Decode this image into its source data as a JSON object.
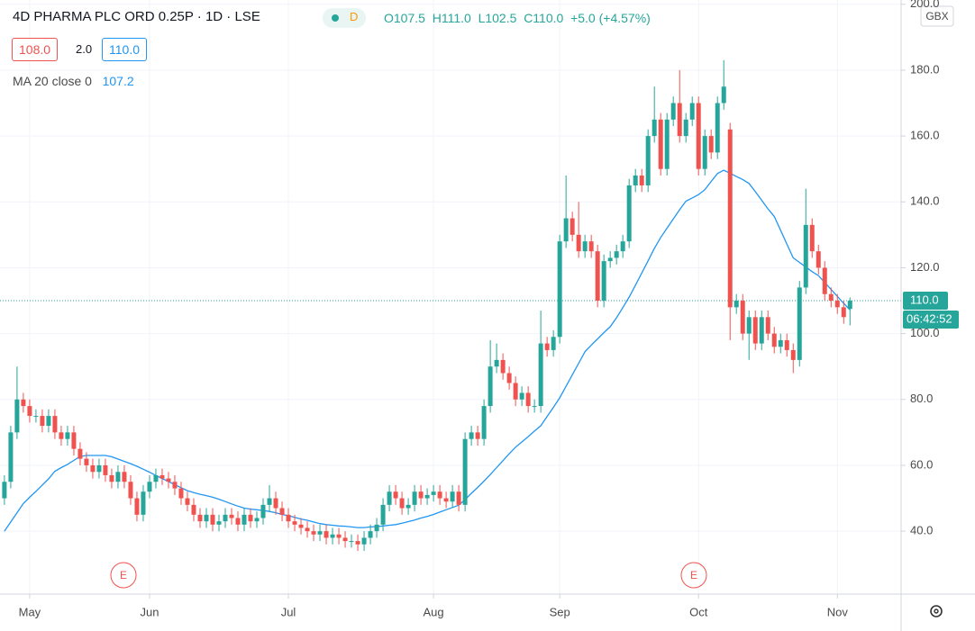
{
  "header": {
    "symbol": "4D PHARMA PLC ORD 0.25P · 1D · LSE",
    "badge": "D",
    "ohlc": [
      "O107.5",
      "H111.0",
      "L102.5",
      "C110.0",
      "+5.0 (+4.57%)"
    ],
    "bid": "108.0",
    "spread": "2.0",
    "ask": "110.0"
  },
  "overlay": {
    "currency": "GBX",
    "last_price": "110.0",
    "countdown": "06:42:52",
    "earnings": [
      "E",
      "E"
    ]
  },
  "chart_data": {
    "type": "candlestick",
    "up_color": "#26a69a",
    "down_color": "#ef5350",
    "grid": true,
    "xlim": [
      -0.7,
      142.1
    ],
    "xticks": [
      {
        "value": 4,
        "label": "May"
      },
      {
        "value": 23,
        "label": "Jun"
      },
      {
        "value": 45,
        "label": "Jul"
      },
      {
        "value": 68,
        "label": "Aug"
      },
      {
        "value": 88,
        "label": "Sep"
      },
      {
        "value": 110,
        "label": "Oct"
      },
      {
        "value": 132,
        "label": "Nov"
      }
    ],
    "ylim": [
      20.9,
      201.3
    ],
    "yticks": [
      {
        "value": 40,
        "label": "40.0"
      },
      {
        "value": 60,
        "label": "60.0"
      },
      {
        "value": 80,
        "label": "80.0"
      },
      {
        "value": 100,
        "label": "100.0"
      },
      {
        "value": 120,
        "label": "120.0"
      },
      {
        "value": 140,
        "label": "140.0"
      },
      {
        "value": 160,
        "label": "160.0"
      },
      {
        "value": 180,
        "label": "180.0"
      },
      {
        "value": 200,
        "label": "200.0"
      }
    ],
    "open": [
      50,
      55,
      70,
      80,
      78,
      75,
      75,
      72,
      75,
      70,
      68,
      70,
      65,
      62,
      60,
      58,
      60,
      57,
      55,
      58,
      55,
      50,
      45,
      52,
      55,
      57,
      56,
      55,
      53,
      50,
      48,
      45,
      43,
      45,
      42,
      43,
      45,
      44,
      42,
      45,
      43,
      44,
      48,
      50,
      47,
      45,
      43,
      42,
      41,
      40,
      39,
      40,
      38,
      39,
      38,
      37,
      37,
      36,
      38,
      40,
      42,
      48,
      52,
      50,
      47,
      48,
      52,
      50,
      51,
      52,
      50,
      49,
      52,
      48,
      68,
      70,
      68,
      78,
      90,
      92,
      88,
      85,
      80,
      82,
      78,
      78,
      97,
      95,
      99,
      128,
      135,
      130,
      125,
      128,
      125,
      110,
      122,
      123,
      125,
      128,
      145,
      148,
      145,
      160,
      165,
      150,
      165,
      170,
      160,
      165,
      170,
      150,
      160,
      155,
      170,
      162,
      108,
      110,
      100,
      105,
      97,
      105,
      100,
      96,
      98,
      95,
      92,
      114,
      133,
      125,
      120,
      112,
      110,
      108,
      107.5
    ],
    "high": [
      57,
      72,
      90,
      82,
      80,
      77,
      77,
      77,
      77,
      72,
      72,
      72,
      67,
      64,
      62,
      62,
      62,
      59,
      60,
      60,
      57,
      52,
      54,
      57,
      59,
      59,
      58,
      57,
      55,
      52,
      50,
      47,
      47,
      47,
      45,
      47,
      47,
      46,
      47,
      47,
      46,
      50,
      54,
      52,
      49,
      47,
      45,
      44,
      43,
      42,
      42,
      42,
      41,
      41,
      40,
      39,
      39,
      40,
      42,
      44,
      50,
      54,
      54,
      52,
      50,
      54,
      54,
      53,
      54,
      54,
      52,
      54,
      54,
      70,
      72,
      72,
      80,
      98,
      97,
      94,
      90,
      87,
      84,
      84,
      80,
      107,
      99,
      101,
      130,
      148,
      137,
      140,
      130,
      130,
      127,
      124,
      125,
      127,
      130,
      147,
      150,
      150,
      162,
      175,
      167,
      167,
      172,
      180,
      167,
      172,
      172,
      162,
      162,
      172,
      183,
      164,
      112,
      112,
      107,
      107,
      107,
      107,
      102,
      100,
      100,
      97,
      116,
      144,
      135,
      127,
      122,
      114,
      112,
      110,
      111
    ],
    "low": [
      48,
      53,
      68,
      76,
      73,
      73,
      70,
      70,
      68,
      66,
      66,
      63,
      60,
      58,
      56,
      56,
      55,
      53,
      53,
      53,
      48,
      43,
      43,
      50,
      53,
      54,
      53,
      51,
      48,
      46,
      43,
      41,
      41,
      40,
      40,
      41,
      42,
      40,
      40,
      41,
      41,
      42,
      46,
      45,
      43,
      41,
      40,
      39,
      38,
      37,
      37,
      36,
      36,
      36,
      35,
      35,
      34,
      34,
      36,
      38,
      40,
      46,
      48,
      45,
      45,
      46,
      48,
      48,
      49,
      48,
      47,
      47,
      46,
      46,
      66,
      66,
      66,
      76,
      88,
      86,
      83,
      78,
      78,
      76,
      76,
      76,
      93,
      93,
      97,
      126,
      128,
      123,
      123,
      123,
      108,
      108,
      120,
      121,
      123,
      126,
      143,
      143,
      143,
      158,
      148,
      148,
      163,
      158,
      158,
      163,
      148,
      148,
      153,
      153,
      168,
      98,
      106,
      98,
      92,
      95,
      95,
      98,
      94,
      94,
      93,
      88,
      90,
      112,
      123,
      118,
      110,
      108,
      106,
      103,
      102.5
    ],
    "close": [
      55,
      70,
      80,
      78,
      75,
      75,
      72,
      75,
      70,
      68,
      70,
      65,
      62,
      60,
      58,
      60,
      57,
      55,
      58,
      55,
      50,
      45,
      52,
      55,
      57,
      56,
      55,
      53,
      50,
      48,
      45,
      43,
      45,
      42,
      43,
      45,
      44,
      42,
      45,
      43,
      44,
      48,
      50,
      47,
      45,
      43,
      42,
      41,
      40,
      39,
      40,
      38,
      39,
      38,
      37,
      37,
      36,
      38,
      40,
      42,
      48,
      52,
      50,
      47,
      48,
      52,
      50,
      51,
      52,
      50,
      49,
      52,
      48,
      68,
      70,
      68,
      78,
      90,
      92,
      88,
      85,
      80,
      82,
      78,
      78,
      97,
      95,
      99,
      128,
      135,
      130,
      125,
      128,
      125,
      110,
      122,
      123,
      125,
      128,
      145,
      148,
      145,
      160,
      165,
      150,
      165,
      170,
      160,
      165,
      170,
      150,
      160,
      155,
      170,
      175,
      108,
      110,
      100,
      105,
      97,
      105,
      100,
      96,
      98,
      95,
      92,
      114,
      133,
      125,
      120,
      112,
      110,
      108,
      105,
      110
    ],
    "ma": {
      "name": "MA 20 close 0",
      "color": "#2196f3",
      "last_label": "107.2",
      "values": [
        40,
        42.8,
        45.6,
        48.4,
        50.3,
        52.1,
        54,
        55.9,
        58.2,
        59.3,
        60.3,
        61.5,
        62.7,
        63,
        63,
        63,
        63,
        62.6,
        61.9,
        61.2,
        60.5,
        59.7,
        58.8,
        57.9,
        56.9,
        56,
        55.1,
        54.1,
        53.2,
        52.3,
        51.7,
        51.2,
        50.8,
        50.3,
        49.7,
        49,
        48.3,
        47.6,
        47,
        46.7,
        46.5,
        46.3,
        46,
        45.6,
        45.1,
        44.7,
        44.2,
        43.7,
        43.3,
        42.8,
        42.3,
        42,
        41.8,
        41.6,
        41.5,
        41.3,
        41.1,
        41.1,
        41.3,
        41.4,
        41.6,
        41.8,
        42,
        42.4,
        42.9,
        43.4,
        44,
        44.5,
        45.1,
        45.8,
        46.5,
        47.2,
        47.9,
        49.6,
        51.5,
        53.3,
        55.2,
        57.2,
        59.3,
        61.4,
        63.5,
        65.5,
        67.1,
        68.7,
        70.4,
        72,
        74.8,
        77.6,
        80.5,
        84,
        87.5,
        91,
        94.5,
        96.5,
        98.4,
        100.3,
        102.1,
        104.8,
        107.9,
        111.1,
        114.7,
        118.4,
        122.1,
        125.9,
        129.2,
        132,
        134.8,
        137.6,
        140.2,
        141.2,
        142.2,
        143.7,
        146.2,
        148.6,
        149.6,
        148.7,
        147.7,
        146.8,
        145.6,
        143.1,
        140.5,
        137.9,
        135.6,
        131.4,
        127.2,
        123,
        121.6,
        120.2,
        118.8,
        117.6,
        115.5,
        113.4,
        111.3,
        109.2,
        107.2
      ]
    }
  }
}
